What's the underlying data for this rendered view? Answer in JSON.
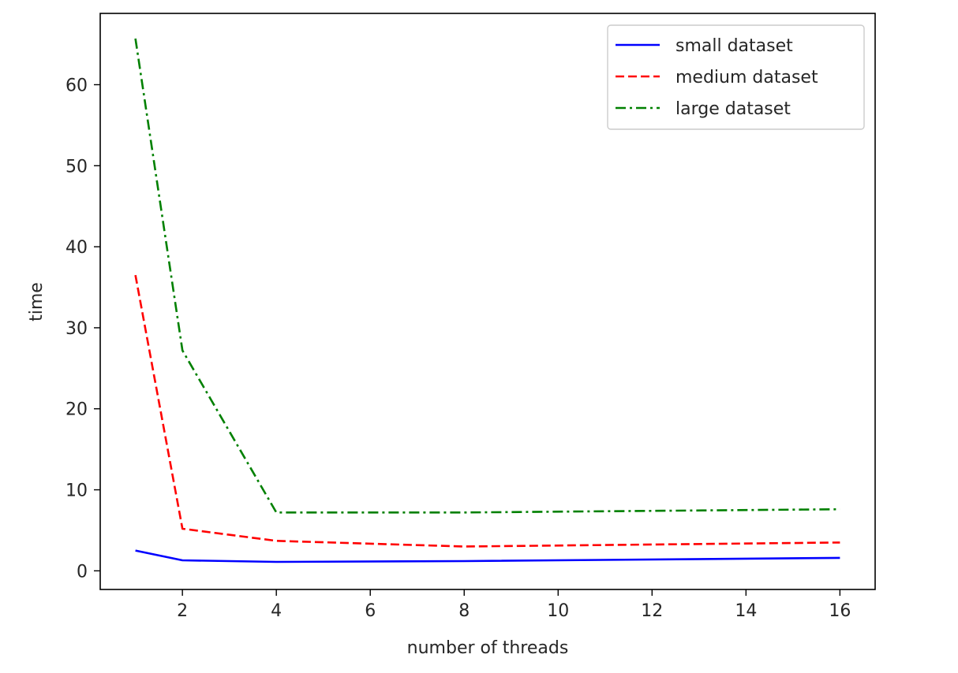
{
  "chart_data": {
    "type": "line",
    "title": "",
    "xlabel": "number of threads",
    "ylabel": "time",
    "xlim": [
      0.25,
      16.75
    ],
    "ylim": [
      -2.3,
      68.8
    ],
    "xticks": [
      2,
      4,
      6,
      8,
      10,
      12,
      14,
      16
    ],
    "yticks": [
      0,
      10,
      20,
      30,
      40,
      50,
      60
    ],
    "grid": false,
    "legend_position": "upper right",
    "series": [
      {
        "name": "small dataset",
        "color": "#0000ff",
        "line_style": "solid",
        "x": [
          1,
          2,
          4,
          8,
          16
        ],
        "y": [
          2.5,
          1.3,
          1.1,
          1.2,
          1.6
        ]
      },
      {
        "name": "medium dataset",
        "color": "#ff0000",
        "line_style": "dashed",
        "x": [
          1,
          2,
          4,
          8,
          16
        ],
        "y": [
          36.5,
          5.2,
          3.7,
          3.0,
          3.5
        ]
      },
      {
        "name": "large dataset",
        "color": "#008000",
        "line_style": "dashdot",
        "x": [
          1,
          2,
          4,
          8,
          16
        ],
        "y": [
          65.7,
          27.2,
          7.2,
          7.2,
          7.6
        ]
      }
    ]
  }
}
